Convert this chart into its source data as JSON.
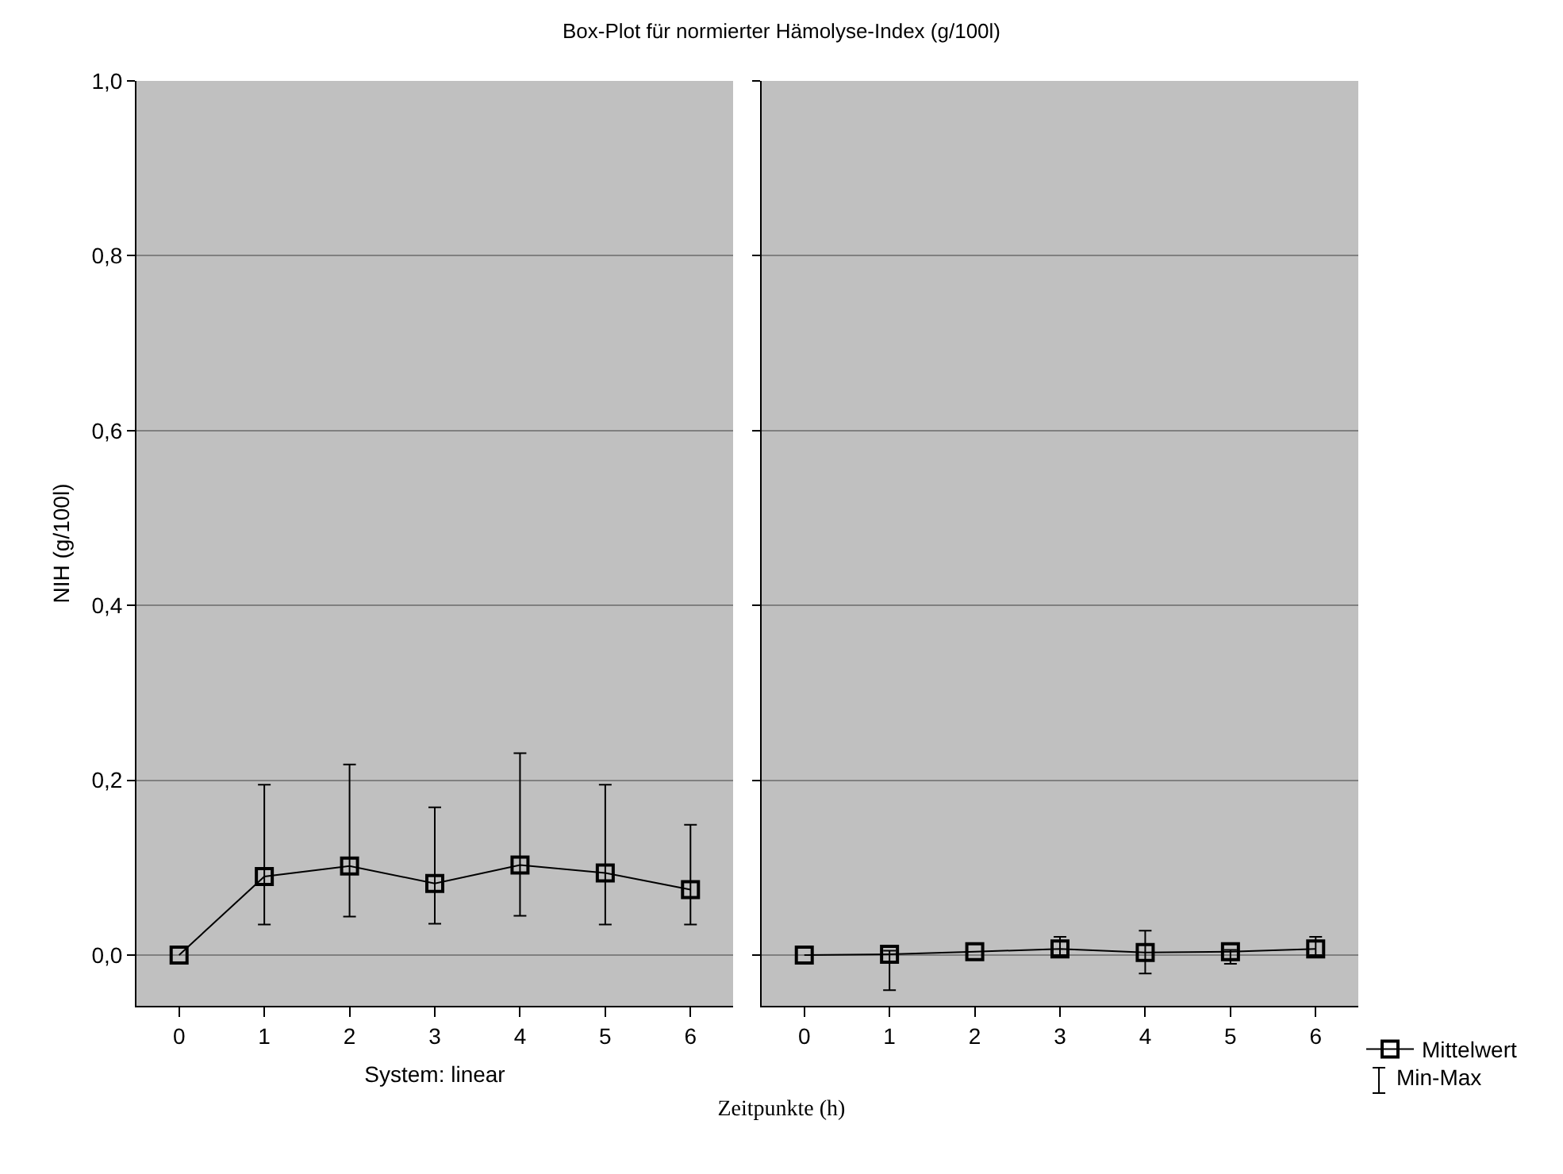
{
  "chart_data": [
    {
      "type": "line",
      "title": "Box-Plot für normierter Hämolyse-Index (g/100l)",
      "xlabel": "System: linear",
      "ylabel": "NIH (g/100l)",
      "annotations": [
        "Zeitpunkte (h)"
      ],
      "x": [
        0,
        1,
        2,
        3,
        4,
        5,
        6
      ],
      "series": [
        {
          "color": "#000000",
          "values": [
            0,
            0.09,
            0.102,
            0.082,
            0.103,
            0.094,
            0.075
          ],
          "errors": [
            null,
            [
              0.035,
              0.195
            ],
            [
              0.044,
              0.218
            ],
            [
              0.036,
              0.169
            ],
            [
              0.045,
              0.231
            ],
            [
              0.035,
              0.195
            ],
            [
              0.035,
              0.149
            ]
          ]
        }
      ],
      "xlim": [
        -0.5,
        6.5
      ],
      "xticks": [
        0,
        1,
        2,
        3,
        4,
        5,
        6
      ],
      "ylim": [
        -0.058,
        1.0
      ],
      "yticks": [
        {
          "value": 0,
          "label": "0,0"
        },
        {
          "value": 0.2,
          "label": "0,2"
        },
        {
          "value": 0.4,
          "label": "0,4"
        },
        {
          "value": 0.6,
          "label": "0,6"
        },
        {
          "value": 0.8,
          "label": "0,8"
        },
        {
          "value": 1.0,
          "label": "1,0"
        }
      ],
      "grid": "y",
      "marker": "square",
      "line_style": "solid",
      "legend": false
    },
    {
      "type": "line",
      "annotations": [
        "Min-Max"
      ],
      "x": [
        0,
        1,
        2,
        3,
        4,
        5,
        6
      ],
      "series": [
        {
          "name": "Mittelwert",
          "color": "#000000",
          "values": [
            0,
            0.001,
            0.004,
            0.007,
            0.003,
            0.004,
            0.007
          ],
          "errors": [
            null,
            [
              -0.04,
              0.005
            ],
            null,
            [
              0.0,
              0.021
            ],
            [
              -0.021,
              0.028
            ],
            [
              -0.01,
              0.006
            ],
            [
              0.0,
              0.021
            ]
          ]
        }
      ],
      "xlim": [
        -0.5,
        6.5
      ],
      "xticks": [
        0,
        1,
        2,
        3,
        4,
        5,
        6
      ],
      "ylim": [
        -0.058,
        1.0
      ],
      "yticks": [
        {
          "value": 0,
          "label": null
        },
        {
          "value": 0.2,
          "label": null
        },
        {
          "value": 0.4,
          "label": null
        },
        {
          "value": 0.6,
          "label": null
        },
        {
          "value": 0.8,
          "label": null
        },
        {
          "value": 1.0,
          "label": null
        }
      ],
      "grid": "y",
      "marker": "square",
      "line_style": "solid",
      "legend": "bottom right",
      "tick_labels": "x"
    }
  ]
}
